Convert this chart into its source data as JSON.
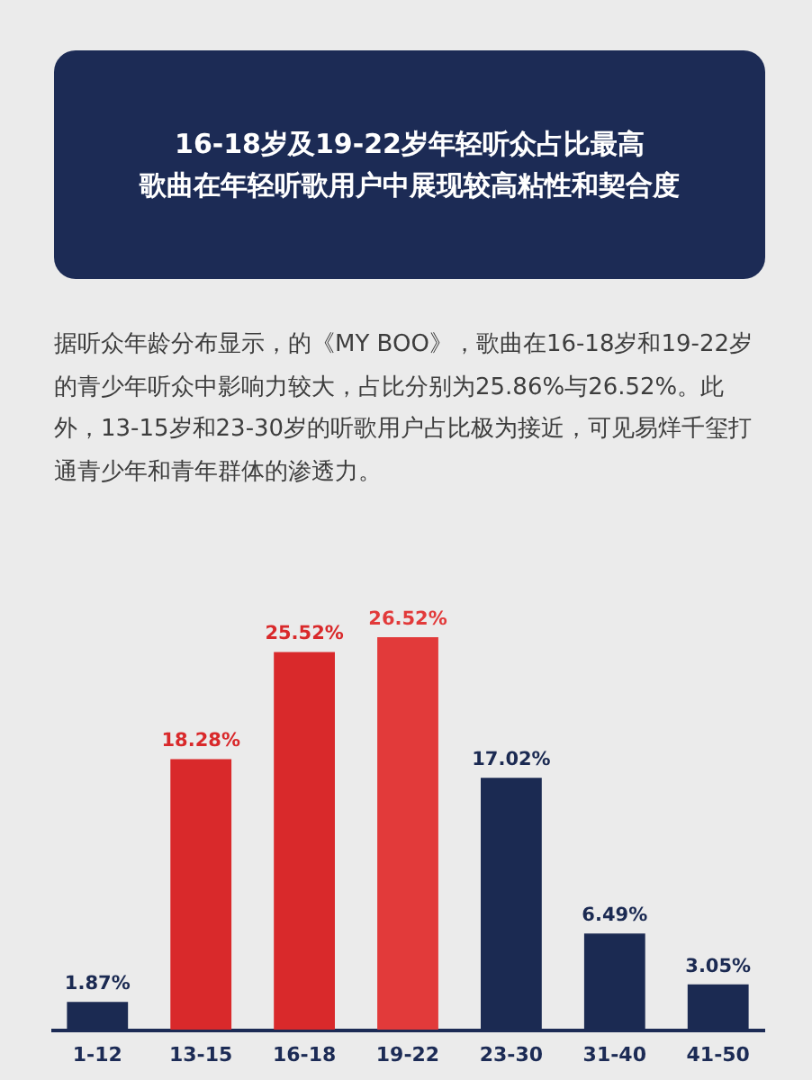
{
  "chart_data": {
    "type": "bar",
    "title": "16-18岁及19-22岁年轻听众占比最高",
    "subtitle": "歌曲在年轻听歌用户中展现较高粘性和契合度",
    "annotations": [
      "据听众年龄分布显示，的《MY BOO》，歌曲在16-18岁和19-22岁的青少年听众中影响力较大，占比分别为25.86%与26.52%。此外，13-15岁和23-30岁的听歌用户占比极为接近，可见易烊千玺打通青少年和青年群体的渗透力。"
    ],
    "categories": [
      "1-12",
      "13-15",
      "16-18",
      "19-22",
      "23-30",
      "31-40",
      "41-50"
    ],
    "values": [
      1.87,
      18.28,
      25.52,
      26.52,
      17.02,
      6.49,
      3.05
    ],
    "colors": [
      "#1b2a52",
      "#d9292b",
      "#d9292b",
      "#e23a3a",
      "#1b2a52",
      "#1b2a52",
      "#1b2a52"
    ],
    "value_labels": [
      "1.87%",
      "18.28%",
      "25.52%",
      "26.52%",
      "17.02%",
      "6.49%",
      "3.05%"
    ]
  }
}
